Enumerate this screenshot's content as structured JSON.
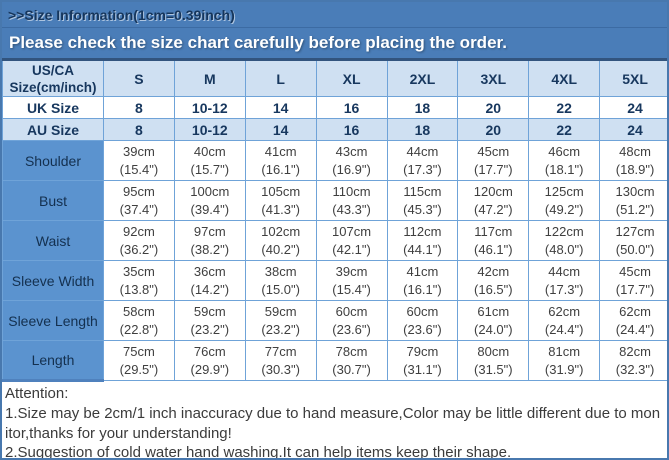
{
  "header": {
    "title": ">>Size Information(1cm=0.39inch)",
    "subtitle": "Please check the size chart carefully before placing the order."
  },
  "table": {
    "corner": {
      "line1": "US/CA",
      "line2": "Size(cm/inch)"
    },
    "columns": [
      "S",
      "M",
      "L",
      "XL",
      "2XL",
      "3XL",
      "4XL",
      "5XL"
    ],
    "size_rows": [
      {
        "label": "UK Size",
        "values": [
          "8",
          "10-12",
          "14",
          "16",
          "18",
          "20",
          "22",
          "24"
        ]
      },
      {
        "label": "AU Size",
        "values": [
          "8",
          "10-12",
          "14",
          "16",
          "18",
          "20",
          "22",
          "24"
        ]
      }
    ],
    "measurements": [
      {
        "label": "Shoulder",
        "cm": [
          "39cm",
          "40cm",
          "41cm",
          "43cm",
          "44cm",
          "45cm",
          "46cm",
          "48cm"
        ],
        "inch": [
          "(15.4\")",
          "(15.7\")",
          "(16.1\")",
          "(16.9\")",
          "(17.3\")",
          "(17.7\")",
          "(18.1\")",
          "(18.9\")"
        ]
      },
      {
        "label": "Bust",
        "cm": [
          "95cm",
          "100cm",
          "105cm",
          "110cm",
          "115cm",
          "120cm",
          "125cm",
          "130cm"
        ],
        "inch": [
          "(37.4\")",
          "(39.4\")",
          "(41.3\")",
          "(43.3\")",
          "(45.3\")",
          "(47.2\")",
          "(49.2\")",
          "(51.2\")"
        ]
      },
      {
        "label": "Waist",
        "cm": [
          "92cm",
          "97cm",
          "102cm",
          "107cm",
          "112cm",
          "117cm",
          "122cm",
          "127cm"
        ],
        "inch": [
          "(36.2\")",
          "(38.2\")",
          "(40.2\")",
          "(42.1\")",
          "(44.1\")",
          "(46.1\")",
          "(48.0\")",
          "(50.0\")"
        ]
      },
      {
        "label": "Sleeve Width",
        "cm": [
          "35cm",
          "36cm",
          "38cm",
          "39cm",
          "41cm",
          "42cm",
          "44cm",
          "45cm"
        ],
        "inch": [
          "(13.8\")",
          "(14.2\")",
          "(15.0\")",
          "(15.4\")",
          "(16.1\")",
          "(16.5\")",
          "(17.3\")",
          "(17.7\")"
        ]
      },
      {
        "label": "Sleeve Length",
        "cm": [
          "58cm",
          "59cm",
          "59cm",
          "60cm",
          "60cm",
          "61cm",
          "62cm",
          "62cm"
        ],
        "inch": [
          "(22.8\")",
          "(23.2\")",
          "(23.2\")",
          "(23.6\")",
          "(23.6\")",
          "(24.0\")",
          "(24.4\")",
          "(24.4\")"
        ]
      },
      {
        "label": "Length",
        "cm": [
          "75cm",
          "76cm",
          "77cm",
          "78cm",
          "79cm",
          "80cm",
          "81cm",
          "82cm"
        ],
        "inch": [
          "(29.5\")",
          "(29.9\")",
          "(30.3\")",
          "(30.7\")",
          "(31.1\")",
          "(31.5\")",
          "(31.9\")",
          "(32.3\")"
        ]
      }
    ]
  },
  "attention": {
    "title": "Attention:",
    "line1": "1.Size may be 2cm/1 inch inaccuracy due to hand measure,Color may be little different due to monitor,thanks for your understanding!",
    "line2": "2.Suggestion of cold water hand washing.It can help items keep their shape."
  },
  "colors": {
    "banner_blue": "#4a7db8",
    "label_column_blue": "#5b93cf",
    "light_blue_row": "#cfe0f2",
    "navy_text": "#17375e",
    "cell_border_blue": "#6fa3d8",
    "value_text_gray": "#3f3f3f"
  }
}
